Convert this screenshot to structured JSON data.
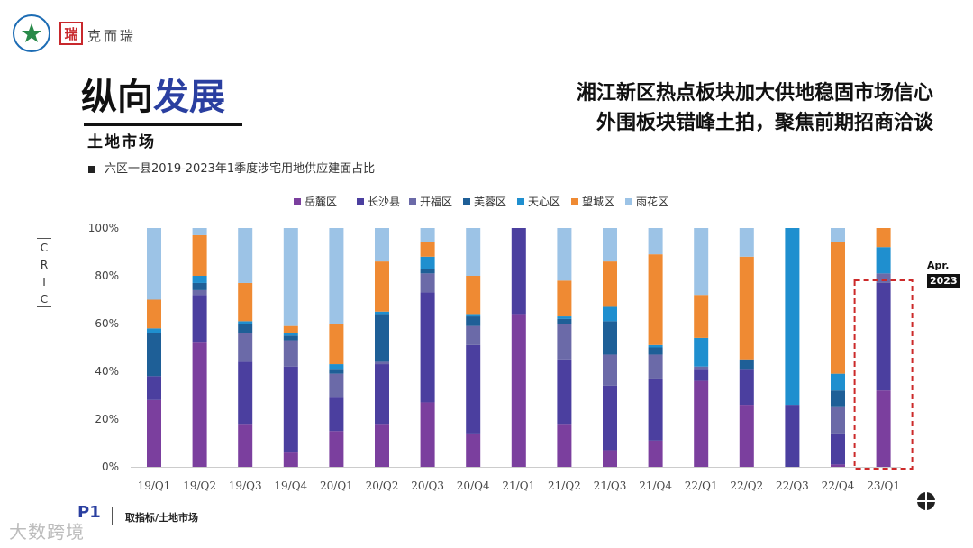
{
  "brand": {
    "name": "克而瑞",
    "seal": "瑞",
    "logo_icon": "star-emblem-icon"
  },
  "section": {
    "title_plain": "纵向",
    "title_accent": "发展",
    "subtitle": "土地市场"
  },
  "headline": {
    "line1": "湘江新区热点板块加大供地稳固市场信心",
    "line2": "外围板块错峰土拍，聚焦前期招商洽谈"
  },
  "side": {
    "cric": "CRIC",
    "month": "Apr.",
    "year": "2023"
  },
  "footer": {
    "page": "P1",
    "label": "取指标/土地市场",
    "watermark": "大数跨境",
    "nav_icon": "crosshair-icon"
  },
  "chart_data": {
    "type": "bar",
    "stacked": true,
    "title": "六区一县2019-2023年1季度涉宅用地供应建面占比",
    "ylim": [
      0,
      100
    ],
    "yticks": [
      "0%",
      "20%",
      "40%",
      "60%",
      "80%",
      "100%"
    ],
    "categories": [
      "19/Q1",
      "19/Q2",
      "19/Q3",
      "19/Q4",
      "20/Q1",
      "20/Q2",
      "20/Q3",
      "20/Q4",
      "21/Q1",
      "21/Q2",
      "21/Q3",
      "21/Q4",
      "22/Q1",
      "22/Q2",
      "22/Q3",
      "22/Q4",
      "23/Q1"
    ],
    "highlight_category": "23/Q1",
    "series": [
      {
        "name": "岳麓区",
        "color": "#7b3f9e",
        "values": [
          28,
          52,
          18,
          6,
          15,
          18,
          27,
          14,
          64,
          18,
          7,
          11,
          36,
          26,
          0,
          1,
          32
        ]
      },
      {
        "name": "长沙县",
        "color": "#4b3f9f",
        "values": [
          10,
          20,
          26,
          36,
          14,
          25,
          46,
          37,
          36,
          27,
          27,
          26,
          5,
          15,
          26,
          13,
          45
        ]
      },
      {
        "name": "开福区",
        "color": "#6b6aa8",
        "values": [
          0,
          2,
          12,
          11,
          10,
          1,
          8,
          8,
          0,
          15,
          13,
          10,
          1,
          0,
          0,
          11,
          4
        ]
      },
      {
        "name": "芙蓉区",
        "color": "#1e5f97",
        "values": [
          18,
          3,
          4,
          2,
          2,
          20,
          2,
          4,
          0,
          2,
          14,
          3,
          0,
          4,
          0,
          7,
          0
        ]
      },
      {
        "name": "天心区",
        "color": "#1f8fcf",
        "values": [
          2,
          3,
          1,
          1,
          2,
          1,
          5,
          1,
          0,
          1,
          6,
          1,
          12,
          0,
          74,
          7,
          11
        ]
      },
      {
        "name": "望城区",
        "color": "#ef8a33",
        "values": [
          12,
          17,
          16,
          3,
          17,
          21,
          6,
          16,
          0,
          15,
          19,
          38,
          18,
          43,
          0,
          55,
          8
        ]
      },
      {
        "name": "雨花区",
        "color": "#9cc3e6",
        "values": [
          30,
          3,
          23,
          41,
          40,
          14,
          6,
          20,
          0,
          22,
          14,
          11,
          28,
          12,
          0,
          6,
          0
        ]
      }
    ]
  }
}
